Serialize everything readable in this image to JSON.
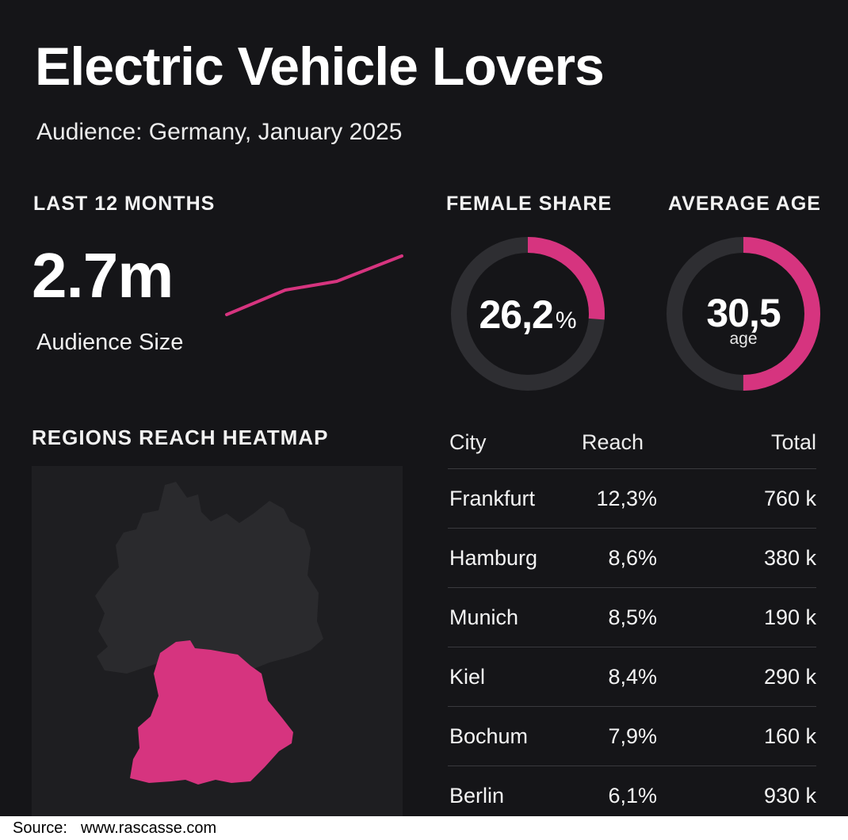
{
  "header": {
    "title": "Electric Vehicle Lovers",
    "subtitle": "Audience: Germany, January 2025"
  },
  "audience": {
    "section_label": "LAST 12 MONTHS",
    "value": "2.7m",
    "caption": "Audience Size",
    "trend_color": "#d6347f"
  },
  "female_share": {
    "section_label": "FEMALE SHARE",
    "value": "26,2",
    "unit": "%",
    "fraction": 0.262
  },
  "average_age": {
    "section_label": "AVERAGE AGE",
    "value": "30,5",
    "unit": "age",
    "fraction": 0.5
  },
  "heatmap": {
    "section_label": "REGIONS REACH HEATMAP",
    "highlighted_region_color": "#d6347f",
    "base_region_color": "#2a2a2d"
  },
  "table": {
    "headers": [
      "City",
      "Reach",
      "Total"
    ],
    "rows": [
      {
        "city": "Frankfurt",
        "reach": "12,3%",
        "total": "760 k"
      },
      {
        "city": "Hamburg",
        "reach": "8,6%",
        "total": "380 k"
      },
      {
        "city": "Munich",
        "reach": "8,5%",
        "total": "190 k"
      },
      {
        "city": "Kiel",
        "reach": "8,4%",
        "total": "290 k"
      },
      {
        "city": "Bochum",
        "reach": "7,9%",
        "total": "160 k"
      },
      {
        "city": "Berlin",
        "reach": "6,1%",
        "total": "930 k"
      }
    ]
  },
  "footer": {
    "label": "Source:",
    "url": "www.rascasse.com"
  },
  "colors": {
    "accent": "#d6347f",
    "background": "#151518",
    "ring_track": "#2e2e32"
  }
}
